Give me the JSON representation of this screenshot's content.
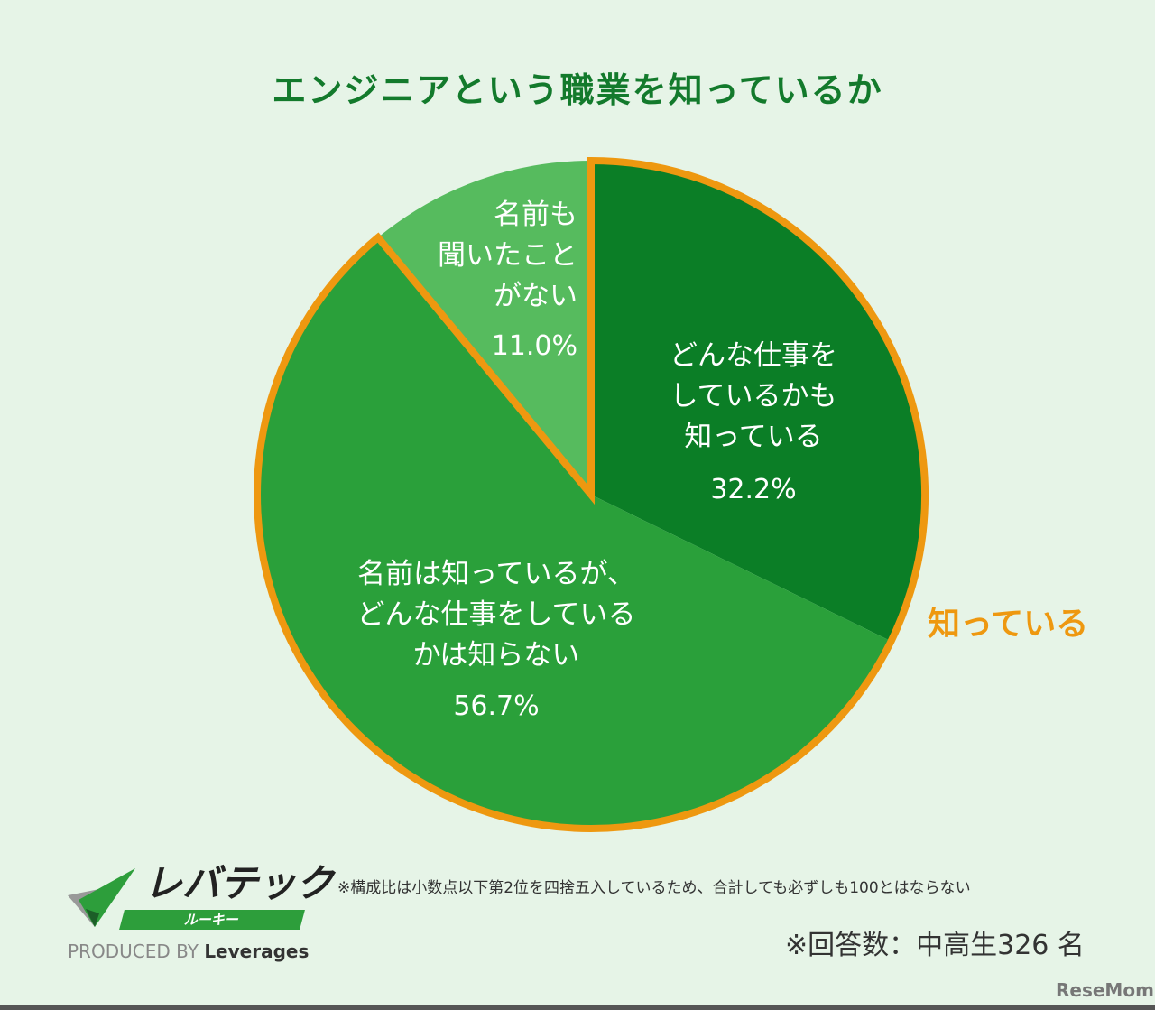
{
  "chart_data": {
    "type": "pie",
    "title": "エンジニアという職業を知っているか",
    "slices": [
      {
        "label": "どんな仕事を\nしているかも\n知っている",
        "value": 32.2,
        "pct_label": "32.2%",
        "color": "#0b7e26"
      },
      {
        "label": "名前は知っているが、\nどんな仕事をしている\nかは知らない",
        "value": 56.7,
        "pct_label": "56.7%",
        "color": "#2aa03a"
      },
      {
        "label": "名前も\n聞いたこと\nがない",
        "value": 11.0,
        "pct_label": "11.0%",
        "color": "#56bb5e"
      }
    ],
    "group_annotation": {
      "label": "知っている",
      "includes": [
        0,
        1
      ],
      "color": "#ee9810"
    },
    "start": "top",
    "direction": "clockwise"
  },
  "footer": {
    "note": "※構成比は小数点以下第2位を四捨五入しているため、合計しても必ずしも100とはならない",
    "count": "※回答数：中高生326 名",
    "logo_main": "レバテック",
    "logo_sub": "ルーキー",
    "produced_by": "PRODUCED BY",
    "leverages": "Leverages",
    "watermark": "ReseMom"
  }
}
